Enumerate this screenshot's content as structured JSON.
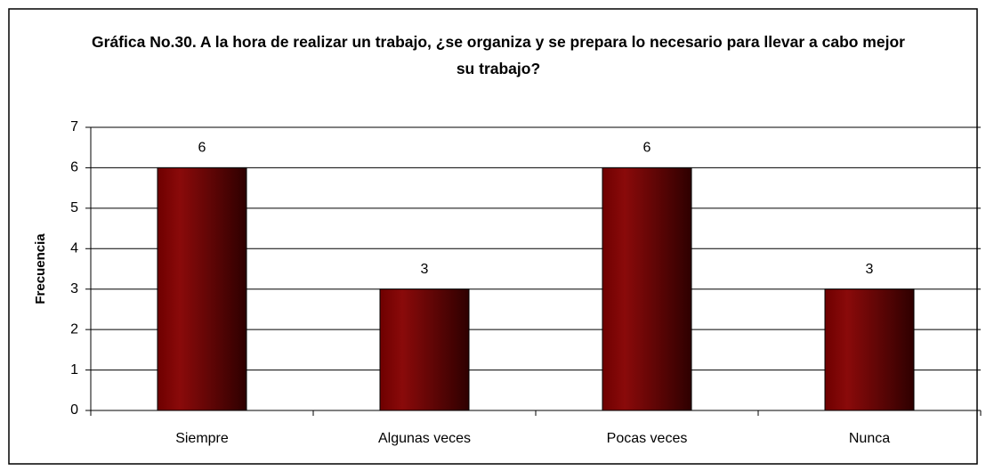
{
  "chart_data": {
    "type": "bar",
    "title": "Gráfica No.30. A la hora de realizar un trabajo, ¿se organiza y se prepara lo necesario para llevar a cabo mejor su trabajo?",
    "y_label": "Frecuencia",
    "categories": [
      "Siempre",
      "Algunas veces",
      "Pocas veces",
      "Nunca"
    ],
    "values": [
      6,
      3,
      6,
      3
    ],
    "color": "#7a0000",
    "ylim": [
      0,
      7
    ],
    "yticks": [
      0,
      1,
      2,
      3,
      4,
      5,
      6,
      7
    ],
    "grid": true
  }
}
